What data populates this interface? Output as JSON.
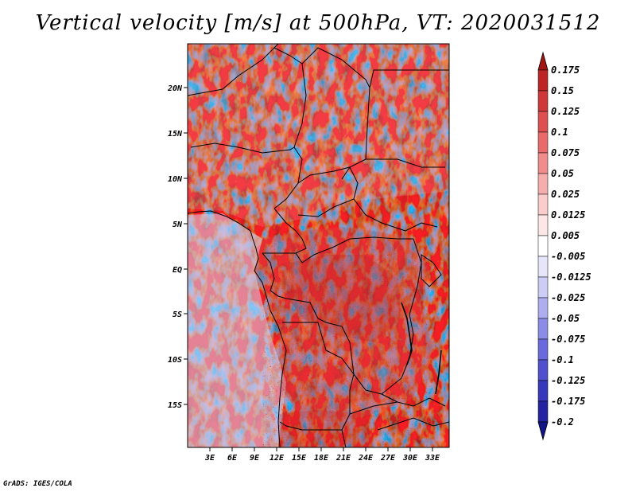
{
  "title": "Vertical velocity [m/s] at 500hPa, VT: 2020031512",
  "footer": "GrADS: IGES/COLA",
  "map": {
    "lat_labels": [
      "20N",
      "15N",
      "10N",
      "5N",
      "EQ",
      "5S",
      "10S",
      "15S"
    ],
    "lon_labels": [
      "3E",
      "6E",
      "9E",
      "12E",
      "15E",
      "18E",
      "21E",
      "24E",
      "27E",
      "30E",
      "33E"
    ]
  },
  "colorbar": {
    "labels": [
      "0.175",
      "0.15",
      "0.125",
      "0.1",
      "0.075",
      "0.05",
      "0.025",
      "0.0125",
      "0.005",
      "-0.005",
      "-0.0125",
      "-0.025",
      "-0.05",
      "-0.075",
      "-0.1",
      "-0.125",
      "-0.175",
      "-0.2"
    ],
    "colors": [
      "#a31515",
      "#bd2424",
      "#cf3838",
      "#de5050",
      "#e86a6a",
      "#f08c8c",
      "#f6adad",
      "#fbcccc",
      "#fde6e6",
      "#ffffff",
      "#e6e6fb",
      "#ccccf6",
      "#adadf0",
      "#8c8ce8",
      "#6a6ade",
      "#5050cf",
      "#3838bd",
      "#2424a3",
      "#15158a"
    ]
  }
}
